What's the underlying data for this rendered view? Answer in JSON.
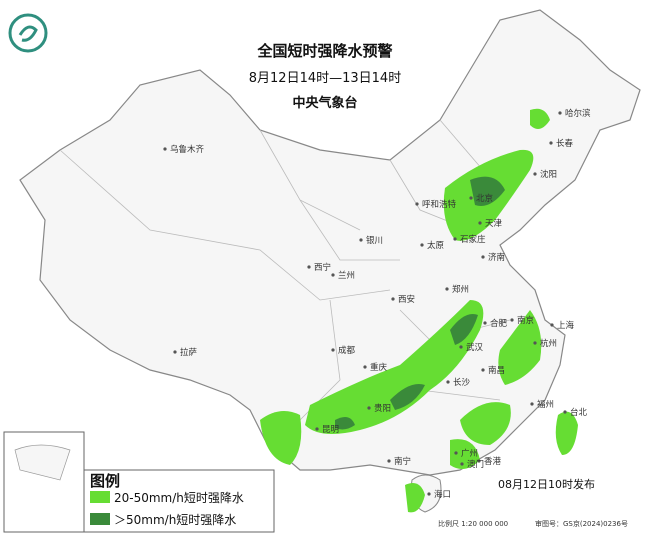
{
  "header": {
    "title": "全国短时强降水预警",
    "period": "8月12日14时—13日14时",
    "issuer": "中央气象台"
  },
  "cities": [
    {
      "name": "哈尔滨"
    },
    {
      "name": "长春"
    },
    {
      "name": "沈阳"
    },
    {
      "name": "乌鲁木齐"
    },
    {
      "name": "呼和浩特"
    },
    {
      "name": "北京"
    },
    {
      "name": "天津"
    },
    {
      "name": "石家庄"
    },
    {
      "name": "太原"
    },
    {
      "name": "银川"
    },
    {
      "name": "西宁"
    },
    {
      "name": "兰州"
    },
    {
      "name": "济南"
    },
    {
      "name": "郑州"
    },
    {
      "name": "西安"
    },
    {
      "name": "合肥"
    },
    {
      "name": "南京"
    },
    {
      "name": "上海"
    },
    {
      "name": "杭州"
    },
    {
      "name": "成都"
    },
    {
      "name": "武汉"
    },
    {
      "name": "重庆"
    },
    {
      "name": "拉萨"
    },
    {
      "name": "长沙"
    },
    {
      "name": "南昌"
    },
    {
      "name": "福州"
    },
    {
      "name": "贵阳"
    },
    {
      "name": "台北"
    },
    {
      "name": "昆明"
    },
    {
      "name": "南宁"
    },
    {
      "name": "广州"
    },
    {
      "name": "香港"
    },
    {
      "name": "澳门"
    },
    {
      "name": "海口"
    }
  ],
  "legend": {
    "title": "图例",
    "items": [
      {
        "label": "20-50mm/h短时强降水",
        "color": "#66dd33"
      },
      {
        "label": "＞50mm/h短时强降水",
        "color": "#3a8a3a"
      }
    ]
  },
  "footer": {
    "issued": "08月12日10时发布",
    "scale": "比例尺 1:20 000 000",
    "map_number": "审图号：GS京(2024)0236号"
  }
}
